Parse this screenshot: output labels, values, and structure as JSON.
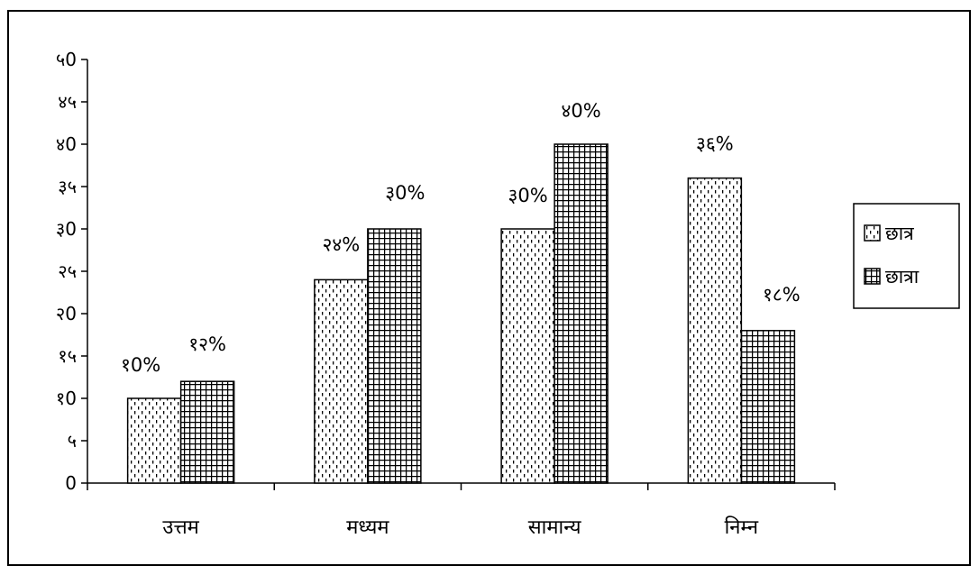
{
  "chart_data": {
    "type": "bar",
    "title": "",
    "xlabel": "",
    "ylabel": "",
    "categories": [
      "उत्तम",
      "मध्यम",
      "सामान्य",
      "निम्न"
    ],
    "series": [
      {
        "name": "छात्र",
        "values": [
          10,
          24,
          30,
          36
        ],
        "labels": [
          "१0%",
          "२४%",
          "३0%",
          "३६%"
        ],
        "pattern": "dots"
      },
      {
        "name": "छात्रा",
        "values": [
          12,
          30,
          40,
          18
        ],
        "labels": [
          "१२%",
          "३0%",
          "४0%",
          "१८%"
        ],
        "pattern": "grid"
      }
    ],
    "ylim": [
      0,
      50
    ],
    "yticks": [
      0,
      5,
      10,
      15,
      20,
      25,
      30,
      35,
      40,
      45,
      50
    ],
    "ytick_labels": [
      "0",
      "५",
      "१0",
      "१५",
      "२0",
      "२५",
      "३0",
      "३५",
      "४0",
      "४५",
      "५0"
    ],
    "grid": false,
    "legend_position": "right"
  }
}
